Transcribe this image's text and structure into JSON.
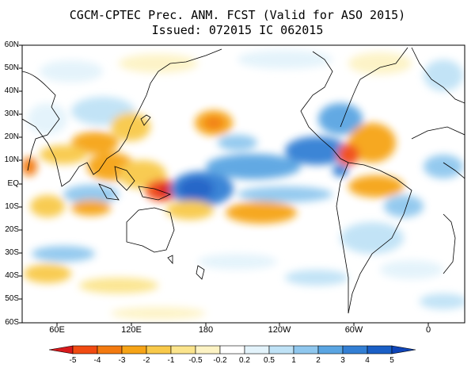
{
  "title": {
    "line1": "CGCM-CPTEC Prec. ANM. FCST  (Valid for ASO 2015)",
    "line2": "Issued:  072015 IC 062015"
  },
  "map": {
    "lat_labels": [
      "60N",
      "50N",
      "40N",
      "30N",
      "20N",
      "10N",
      "EQ",
      "10S",
      "20S",
      "30S",
      "40S",
      "50S",
      "60S"
    ],
    "lon_labels": [
      "60E",
      "120E",
      "180",
      "120W",
      "60W",
      "0"
    ]
  },
  "colorbar": {
    "labels": [
      "-5",
      "-4",
      "-3",
      "-2",
      "-1",
      "-0.5",
      "-0.2",
      "0.2",
      "0.5",
      "1",
      "2",
      "3",
      "4",
      "5"
    ],
    "colors": [
      "#d7191c",
      "#f14b12",
      "#f37a10",
      "#f6a417",
      "#f8c94a",
      "#fbe48c",
      "#fdf3c4",
      "#ffffff",
      "#e3f3fb",
      "#bfe2f6",
      "#8fc7ee",
      "#5aa5e2",
      "#337fd4",
      "#1a5fc6",
      "#0f45b8"
    ]
  }
}
